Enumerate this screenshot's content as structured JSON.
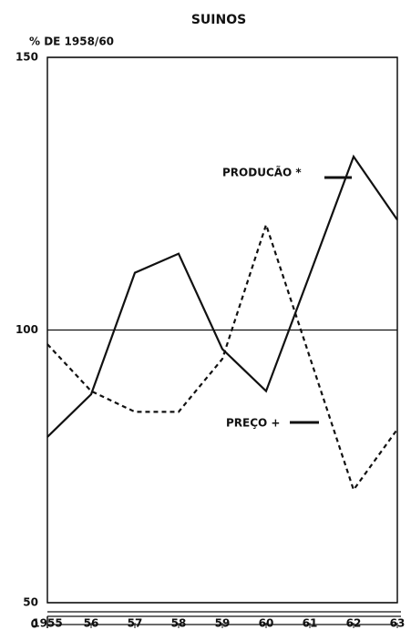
{
  "chart_data": {
    "type": "line",
    "title": "SUINOS",
    "y_label": "% DE 1958/60",
    "x": [
      1955,
      1956,
      1957,
      1958,
      1959,
      1960,
      1961,
      1962,
      1963
    ],
    "series": [
      {
        "name": "PRODUCÃO *",
        "color": "#111111",
        "dash": false,
        "values": [
          80.4,
          88.2,
          110.5,
          114,
          96.5,
          88.8,
          110.2,
          131.8,
          120.2
        ]
      },
      {
        "name": "PREÇO +",
        "color": "#111111",
        "dash": true,
        "values": [
          97.4,
          88.8,
          85,
          85,
          94.7,
          119.3,
          95,
          70.7,
          81.8
        ]
      }
    ],
    "xlim": [
      1955,
      1963
    ],
    "xticks": [
      1955,
      {
        "value": 1956,
        "label": "56"
      },
      {
        "value": 1957,
        "label": "57"
      },
      {
        "value": 1958,
        "label": "58"
      },
      {
        "value": 1959,
        "label": "59"
      },
      {
        "value": 1960,
        "label": "60"
      },
      {
        "value": 1961,
        "label": "61"
      },
      {
        "value": 1962,
        "label": "62"
      },
      {
        "value": 1963,
        "label": "63"
      }
    ],
    "ylim": [
      50,
      150
    ],
    "yticks": [
      0,
      50,
      100,
      150
    ],
    "grid": true
  }
}
